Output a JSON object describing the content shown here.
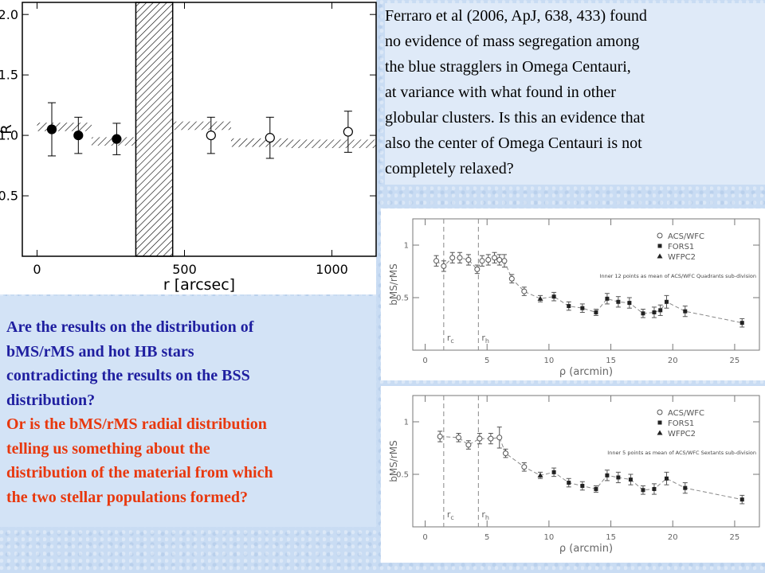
{
  "slide": {
    "top_text": [
      "Ferraro et al (2006, ApJ, 638, 433) found",
      "no evidence of mass segregation among",
      "the blue stragglers in Omega Centauri,",
      "at variance with what found in other",
      "globular clusters. Is this an evidence that",
      "also the center of Omega Centauri is not",
      "completely relaxed?"
    ],
    "bottom_text_blue": [
      "Are the results on the distribution of",
      "bMS/rMS and hot HB stars",
      "contradicting the results on the BSS",
      "distribution?"
    ],
    "bottom_text_red": [
      "Or is the bMS/rMS radial distribution",
      "telling us something about the",
      "distribution of the material from which",
      "the two stellar populations formed?"
    ]
  },
  "chart_data": [
    {
      "type": "scatter",
      "xlabel": "r [arcsec]",
      "ylabel": "R",
      "xlim": [
        -50,
        1150
      ],
      "ylim": [
        0,
        2.1
      ],
      "xticks": [
        0,
        500,
        1000
      ],
      "yticks": [
        0.5,
        {
          "value": 1,
          "label": "1.0"
        },
        1.5,
        {
          "value": 2,
          "label": "2.0"
        }
      ],
      "series": [
        {
          "marker": "filled",
          "x": [
            50,
            140,
            270
          ],
          "values": [
            1.05,
            1.0,
            0.97
          ],
          "errors": [
            0.22,
            0.15,
            0.13
          ]
        },
        {
          "marker": "open",
          "x": [
            590,
            790,
            1055
          ],
          "values": [
            1.0,
            0.98,
            1.03
          ],
          "errors": [
            0.15,
            0.17,
            0.17
          ]
        }
      ],
      "bands": [
        {
          "x": [
            0,
            185
          ],
          "y": 1.07,
          "half_width": 0.035
        },
        {
          "x": [
            185,
            339
          ],
          "y": 0.95,
          "half_width": 0.035
        },
        {
          "x": [
            461,
            658
          ],
          "y": 1.08,
          "half_width": 0.035
        },
        {
          "x": [
            658,
            861
          ],
          "y": 0.94,
          "half_width": 0.035
        },
        {
          "x": [
            861,
            1150
          ],
          "y": 0.93,
          "half_width": 0.035
        }
      ],
      "excluded_region": [
        335,
        460
      ]
    },
    {
      "type": "profile",
      "xlabel": "ρ (arcmin)",
      "ylabel": "bMS/rMS",
      "xlim": [
        -1,
        27
      ],
      "ylim": [
        0,
        1.25
      ],
      "xticks": [
        0,
        5,
        10,
        15,
        20,
        25
      ],
      "yticks": [
        0.5,
        1
      ],
      "legend": [
        {
          "name": "ACS/WFC",
          "marker": "open-circle"
        },
        {
          "name": "FORS1",
          "marker": "square"
        },
        {
          "name": "WFPC2",
          "marker": "triangle"
        }
      ],
      "annotation": "Inner 12 points as mean of ACS/WFC Quadrants sub-division",
      "vlines": [
        {
          "x": 1.5,
          "label": "r",
          "sub": "c"
        },
        {
          "x": 4.3,
          "label": "r",
          "sub": "h"
        }
      ],
      "x": [
        0.9,
        1.5,
        2.2,
        2.8,
        3.5,
        4.2,
        4.6,
        5.1,
        5.6,
        6.0,
        6.4,
        7.0,
        8.0,
        9.3,
        10.4,
        11.6,
        12.7,
        13.8,
        14.7,
        15.6,
        16.5,
        17.6,
        18.5,
        19.0,
        19.5,
        21.0,
        25.6
      ],
      "values": [
        0.85,
        0.8,
        0.88,
        0.88,
        0.86,
        0.77,
        0.85,
        0.86,
        0.88,
        0.86,
        0.85,
        0.68,
        0.56,
        0.49,
        0.51,
        0.42,
        0.4,
        0.36,
        0.49,
        0.46,
        0.45,
        0.35,
        0.36,
        0.38,
        0.46,
        0.37,
        0.26
      ],
      "errors": [
        0.05,
        0.05,
        0.05,
        0.05,
        0.05,
        0.04,
        0.05,
        0.05,
        0.05,
        0.05,
        0.06,
        0.04,
        0.04,
        0.03,
        0.04,
        0.04,
        0.04,
        0.03,
        0.05,
        0.05,
        0.05,
        0.04,
        0.05,
        0.05,
        0.06,
        0.05,
        0.04
      ],
      "instrument": [
        0,
        0,
        0,
        0,
        0,
        0,
        0,
        0,
        0,
        0,
        0,
        0,
        0,
        2,
        1,
        1,
        1,
        1,
        1,
        1,
        1,
        1,
        1,
        1,
        1,
        1,
        1
      ]
    },
    {
      "type": "profile",
      "xlabel": "ρ (arcmin)",
      "ylabel": "bMS/rMS",
      "xlim": [
        -1,
        27
      ],
      "ylim": [
        0,
        1.25
      ],
      "xticks": [
        0,
        5,
        10,
        15,
        20,
        25
      ],
      "yticks": [
        0.5,
        1
      ],
      "legend": [
        {
          "name": "ACS/WFC",
          "marker": "open-circle"
        },
        {
          "name": "FORS1",
          "marker": "square"
        },
        {
          "name": "WFPC2",
          "marker": "triangle"
        }
      ],
      "annotation": "Inner 5 points as mean of ACS/WFC Sextants sub-division",
      "vlines": [
        {
          "x": 1.5,
          "label": "r",
          "sub": "c"
        },
        {
          "x": 4.3,
          "label": "r",
          "sub": "h"
        }
      ],
      "x": [
        1.2,
        2.7,
        3.5,
        4.4,
        5.3,
        6.0,
        6.5,
        8.0,
        9.3,
        10.4,
        11.6,
        12.7,
        13.8,
        14.7,
        15.6,
        16.6,
        17.6,
        18.5,
        19.5,
        21.0,
        25.6
      ],
      "values": [
        0.86,
        0.85,
        0.78,
        0.84,
        0.84,
        0.85,
        0.7,
        0.57,
        0.49,
        0.52,
        0.42,
        0.39,
        0.36,
        0.49,
        0.47,
        0.45,
        0.35,
        0.36,
        0.46,
        0.37,
        0.26
      ],
      "errors": [
        0.05,
        0.04,
        0.04,
        0.05,
        0.05,
        0.1,
        0.04,
        0.04,
        0.03,
        0.04,
        0.04,
        0.04,
        0.03,
        0.05,
        0.05,
        0.05,
        0.04,
        0.05,
        0.06,
        0.05,
        0.04
      ],
      "instrument": [
        0,
        0,
        0,
        0,
        0,
        0,
        0,
        0,
        2,
        1,
        1,
        1,
        1,
        1,
        1,
        1,
        1,
        1,
        1,
        1,
        1
      ]
    }
  ]
}
